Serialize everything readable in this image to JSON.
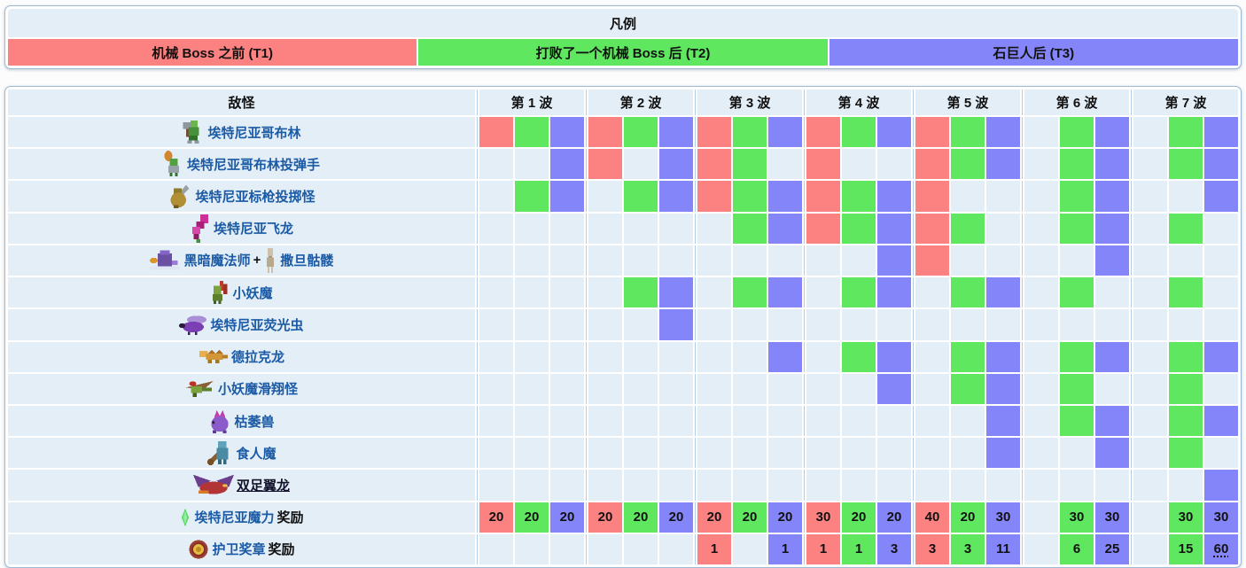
{
  "legend": {
    "title": "凡例",
    "tiers": [
      {
        "label": "机械 Boss 之前 (T1)",
        "color": "#fc8181"
      },
      {
        "label": "打败了一个机械 Boss 后 (T2)",
        "color": "#5fe85f"
      },
      {
        "label": "石巨人后 (T3)",
        "color": "#8585fa"
      }
    ]
  },
  "colors": {
    "tier1_red": "#fc8181",
    "tier2_green": "#5fe85f",
    "tier3_purple": "#8585fa",
    "empty_cell": "#e3eef7",
    "link_blue": "#1b5aa5"
  },
  "table": {
    "enemy_header": "敌怪",
    "wave_headers": [
      "第 1 波",
      "第 2 波",
      "第 3 波",
      "第 4 波",
      "第 5 波",
      "第 6 波",
      "第 7 波"
    ],
    "rows": [
      {
        "label": [
          {
            "icon": "etherian-goblin-icon"
          },
          {
            "text": "埃特尼亚哥布林",
            "type": "link"
          }
        ],
        "cells": [
          "R",
          "G",
          "P",
          "R",
          "G",
          "P",
          "R",
          "G",
          "P",
          "R",
          "G",
          "P",
          "R",
          "G",
          "P",
          null,
          "G",
          "P",
          null,
          "G",
          "P"
        ]
      },
      {
        "label": [
          {
            "icon": "etherian-goblin-bomber-icon"
          },
          {
            "text": "埃特尼亚哥布林投弹手",
            "type": "link"
          }
        ],
        "cells": [
          null,
          null,
          "P",
          "R",
          null,
          "P",
          "R",
          "G",
          null,
          "R",
          null,
          null,
          "R",
          "G",
          "P",
          null,
          "G",
          "P",
          null,
          "G",
          "P"
        ]
      },
      {
        "label": [
          {
            "icon": "etherian-javelin-thrower-icon"
          },
          {
            "text": "埃特尼亚标枪投掷怪",
            "type": "link"
          }
        ],
        "cells": [
          null,
          "G",
          "P",
          null,
          "G",
          "P",
          "R",
          "G",
          "P",
          "R",
          "G",
          "P",
          "R",
          null,
          null,
          null,
          "G",
          "P",
          null,
          null,
          "P"
        ]
      },
      {
        "label": [
          {
            "icon": "etherian-wyvern-icon"
          },
          {
            "text": "埃特尼亚飞龙",
            "type": "link"
          }
        ],
        "cells": [
          null,
          null,
          null,
          null,
          null,
          null,
          null,
          "G",
          "P",
          "R",
          "G",
          "P",
          "R",
          "G",
          null,
          null,
          "G",
          "P",
          null,
          "G",
          null
        ]
      },
      {
        "label": [
          {
            "icon": "dark-mage-icon"
          },
          {
            "text": "黑暗魔法师",
            "type": "link"
          },
          {
            "text": " + ",
            "type": "plain"
          },
          {
            "icon": "skeleton-icon"
          },
          {
            "text": "撒旦骷髅",
            "type": "link"
          }
        ],
        "cells": [
          null,
          null,
          null,
          null,
          null,
          null,
          null,
          null,
          null,
          null,
          null,
          "P",
          "R",
          null,
          null,
          null,
          null,
          "P",
          null,
          null,
          null
        ]
      },
      {
        "label": [
          {
            "icon": "kobold-icon"
          },
          {
            "text": "小妖魔",
            "type": "link"
          }
        ],
        "cells": [
          null,
          null,
          null,
          null,
          "G",
          "P",
          null,
          "G",
          "P",
          null,
          "G",
          "P",
          null,
          "G",
          "P",
          null,
          "G",
          null,
          null,
          "G",
          null
        ]
      },
      {
        "label": [
          {
            "icon": "etherian-lightning-bug-icon"
          },
          {
            "text": "埃特尼亚荧光虫",
            "type": "link"
          }
        ],
        "cells": [
          null,
          null,
          null,
          null,
          null,
          "P",
          null,
          null,
          null,
          null,
          null,
          null,
          null,
          null,
          null,
          null,
          null,
          null,
          null,
          null,
          null
        ]
      },
      {
        "label": [
          {
            "icon": "drakin-icon"
          },
          {
            "text": "德拉克龙",
            "type": "link"
          }
        ],
        "cells": [
          null,
          null,
          null,
          null,
          null,
          null,
          null,
          null,
          "P",
          null,
          "G",
          "P",
          null,
          "G",
          "P",
          null,
          "G",
          "P",
          null,
          "G",
          "P"
        ]
      },
      {
        "label": [
          {
            "icon": "kobold-glider-icon"
          },
          {
            "text": "小妖魔滑翔怪",
            "type": "link"
          }
        ],
        "cells": [
          null,
          null,
          null,
          null,
          null,
          null,
          null,
          null,
          null,
          null,
          null,
          "P",
          null,
          "G",
          "P",
          null,
          "G",
          null,
          null,
          "G",
          null
        ]
      },
      {
        "label": [
          {
            "icon": "withered-beast-icon"
          },
          {
            "text": "枯萎兽",
            "type": "link"
          }
        ],
        "cells": [
          null,
          null,
          null,
          null,
          null,
          null,
          null,
          null,
          null,
          null,
          null,
          null,
          null,
          null,
          "P",
          null,
          "G",
          "P",
          null,
          "G",
          "P"
        ]
      },
      {
        "label": [
          {
            "icon": "ogre-icon"
          },
          {
            "text": "食人魔",
            "type": "link"
          }
        ],
        "cells": [
          null,
          null,
          null,
          null,
          null,
          null,
          null,
          null,
          null,
          null,
          null,
          null,
          null,
          null,
          "P",
          null,
          null,
          "P",
          null,
          "G",
          null
        ]
      },
      {
        "label": [
          {
            "icon": "betsy-icon"
          },
          {
            "text": "双足翼龙",
            "type": "link-dark"
          }
        ],
        "cells": [
          null,
          null,
          null,
          null,
          null,
          null,
          null,
          null,
          null,
          null,
          null,
          null,
          null,
          null,
          null,
          null,
          null,
          null,
          null,
          null,
          "P"
        ]
      },
      {
        "label": [
          {
            "icon": "etherian-mana-icon"
          },
          {
            "text": "埃特尼亚魔力",
            "type": "link"
          },
          {
            "text": " 奖励",
            "type": "plain"
          }
        ],
        "cells": [
          {
            "c": "R",
            "v": "20"
          },
          {
            "c": "G",
            "v": "20"
          },
          {
            "c": "P",
            "v": "20"
          },
          {
            "c": "R",
            "v": "20"
          },
          {
            "c": "G",
            "v": "20"
          },
          {
            "c": "P",
            "v": "20"
          },
          {
            "c": "R",
            "v": "20"
          },
          {
            "c": "G",
            "v": "20"
          },
          {
            "c": "P",
            "v": "20"
          },
          {
            "c": "R",
            "v": "30"
          },
          {
            "c": "G",
            "v": "20"
          },
          {
            "c": "P",
            "v": "20"
          },
          {
            "c": "R",
            "v": "40"
          },
          {
            "c": "G",
            "v": "20"
          },
          {
            "c": "P",
            "v": "30"
          },
          null,
          {
            "c": "G",
            "v": "30"
          },
          {
            "c": "P",
            "v": "30"
          },
          null,
          {
            "c": "G",
            "v": "30"
          },
          {
            "c": "P",
            "v": "30"
          }
        ]
      },
      {
        "label": [
          {
            "icon": "defender-medal-icon"
          },
          {
            "text": "护卫奖章",
            "type": "link"
          },
          {
            "text": " 奖励",
            "type": "plain"
          }
        ],
        "cells": [
          null,
          null,
          null,
          null,
          null,
          null,
          {
            "c": "R",
            "v": "1"
          },
          null,
          {
            "c": "P",
            "v": "1"
          },
          {
            "c": "R",
            "v": "1"
          },
          {
            "c": "G",
            "v": "1"
          },
          {
            "c": "P",
            "v": "3"
          },
          {
            "c": "R",
            "v": "3"
          },
          {
            "c": "G",
            "v": "3"
          },
          {
            "c": "P",
            "v": "11"
          },
          null,
          {
            "c": "G",
            "v": "6"
          },
          {
            "c": "P",
            "v": "25"
          },
          null,
          {
            "c": "G",
            "v": "15"
          },
          {
            "c": "P",
            "v": "60",
            "u": true
          }
        ]
      }
    ]
  }
}
